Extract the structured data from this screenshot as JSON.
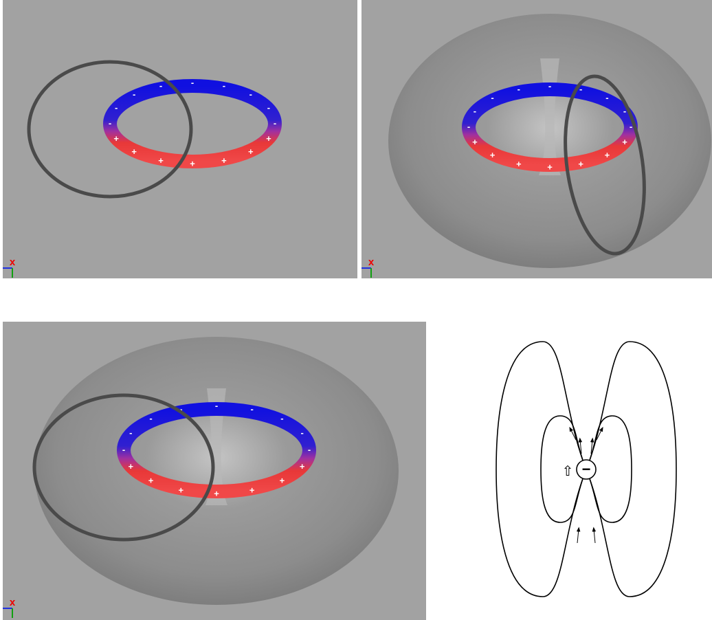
{
  "panels": [
    {
      "axis_label": "x"
    },
    {
      "axis_label": "x"
    },
    {
      "axis_label": "x"
    }
  ],
  "ring": {
    "positive": "+",
    "negative": "-"
  },
  "diagram": {
    "charge": "−",
    "arrow": "⇧"
  }
}
